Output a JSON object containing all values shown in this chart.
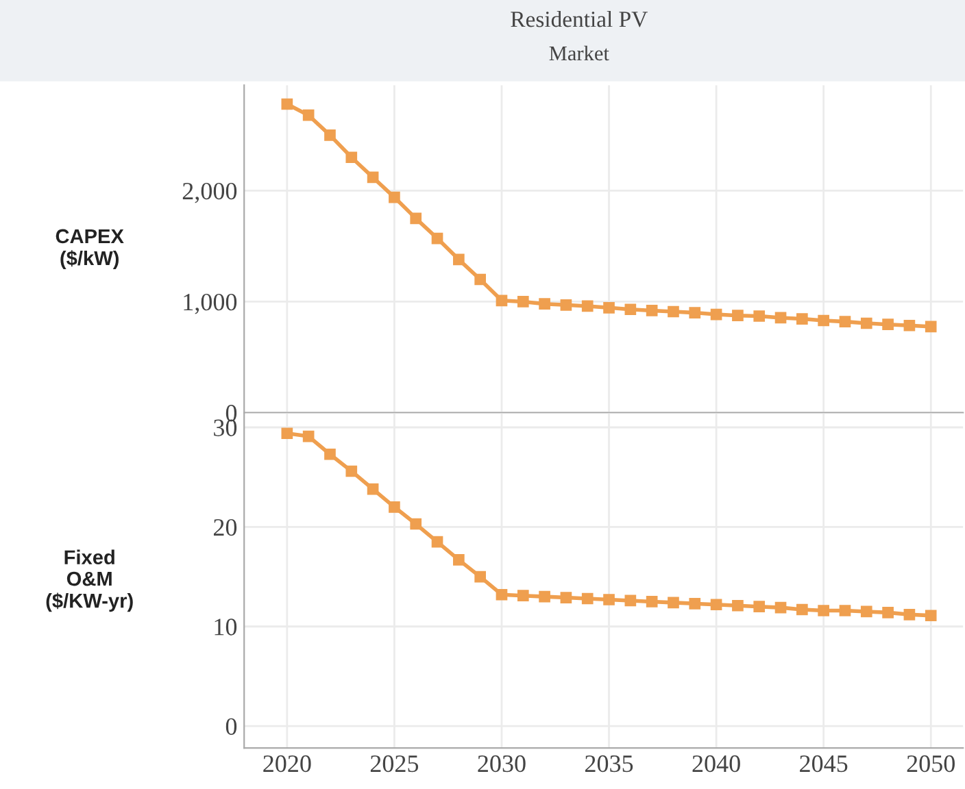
{
  "chart_data": [
    {
      "type": "line",
      "title": "Residential PV",
      "subtitle": "Market",
      "ylabel": "CAPEX\n($/kW)",
      "x": [
        2020,
        2021,
        2022,
        2023,
        2024,
        2025,
        2026,
        2027,
        2028,
        2029,
        2030,
        2031,
        2032,
        2033,
        2034,
        2035,
        2036,
        2037,
        2038,
        2039,
        2040,
        2041,
        2042,
        2043,
        2044,
        2045,
        2046,
        2047,
        2048,
        2049,
        2050
      ],
      "series": [
        {
          "color": "#ef9f4f",
          "values": [
            2780,
            2680,
            2500,
            2300,
            2120,
            1940,
            1750,
            1570,
            1380,
            1200,
            1010,
            1000,
            980,
            970,
            960,
            945,
            930,
            920,
            910,
            900,
            885,
            875,
            870,
            855,
            845,
            830,
            820,
            805,
            795,
            785,
            775
          ]
        }
      ],
      "xlim": [
        2018,
        2051.5
      ],
      "ylim": [
        0,
        2950
      ],
      "yticks": [
        {
          "value": 0,
          "label": "0"
        },
        {
          "value": 1000,
          "label": "1,000"
        },
        {
          "value": 2000,
          "label": "2,000"
        }
      ],
      "xticks": [
        2020,
        2025,
        2030,
        2035,
        2040,
        2045,
        2050
      ],
      "tick_labels": "y",
      "grid": true,
      "marker": "square",
      "line_style": "solid",
      "legend": false
    },
    {
      "type": "line",
      "ylabel": "Fixed\nO&M\n($/KW-yr)",
      "x": [
        2020,
        2021,
        2022,
        2023,
        2024,
        2025,
        2026,
        2027,
        2028,
        2029,
        2030,
        2031,
        2032,
        2033,
        2034,
        2035,
        2036,
        2037,
        2038,
        2039,
        2040,
        2041,
        2042,
        2043,
        2044,
        2045,
        2046,
        2047,
        2048,
        2049,
        2050
      ],
      "series": [
        {
          "color": "#ef9f4f",
          "values": [
            29.4,
            29.1,
            27.3,
            25.6,
            23.8,
            22.0,
            20.3,
            18.5,
            16.7,
            15.0,
            13.2,
            13.1,
            13.0,
            12.9,
            12.8,
            12.7,
            12.6,
            12.5,
            12.4,
            12.3,
            12.2,
            12.1,
            12.0,
            11.9,
            11.7,
            11.6,
            11.6,
            11.5,
            11.4,
            11.2,
            11.1
          ]
        }
      ],
      "xlim": [
        2018,
        2051.5
      ],
      "ylim": [
        -2.2,
        31.4
      ],
      "yticks": [
        0,
        10,
        20,
        30
      ],
      "xticks": [
        2020,
        2025,
        2030,
        2035,
        2040,
        2045,
        2050
      ],
      "grid": true,
      "marker": "square",
      "line_style": "solid",
      "legend": false
    }
  ]
}
